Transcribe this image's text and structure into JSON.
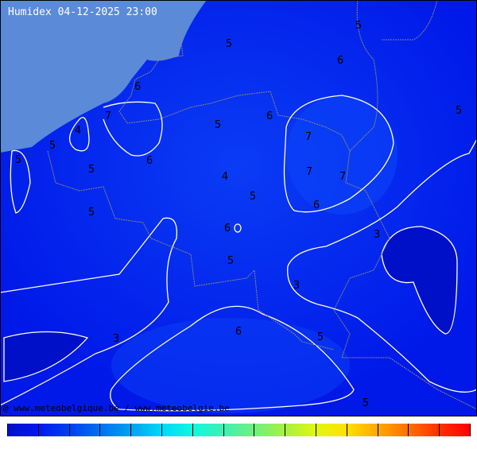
{
  "title": "Humidex 04-12-2025 23:00",
  "credit": "@ www.meteobelgique.be / www.meteobelgie.be",
  "colors": {
    "sea": "#5b8ad8",
    "land_base": "#0022ee",
    "contour": "#ffffff",
    "border": "#888888"
  },
  "contour_labels": [
    {
      "value": "5",
      "id": "a"
    },
    {
      "value": "5",
      "id": "b"
    },
    {
      "value": "6",
      "id": "c"
    },
    {
      "value": "6",
      "id": "d"
    },
    {
      "value": "7",
      "id": "e"
    },
    {
      "value": "4",
      "id": "f"
    },
    {
      "value": "5",
      "id": "g"
    },
    {
      "value": "5",
      "id": "h"
    },
    {
      "value": "6",
      "id": "i"
    },
    {
      "value": "5",
      "id": "j"
    },
    {
      "value": "6",
      "id": "k"
    },
    {
      "value": "7",
      "id": "l"
    },
    {
      "value": "7",
      "id": "m"
    },
    {
      "value": "7",
      "id": "n"
    },
    {
      "value": "4",
      "id": "o"
    },
    {
      "value": "5",
      "id": "p"
    },
    {
      "value": "6",
      "id": "q"
    },
    {
      "value": "5",
      "id": "r"
    },
    {
      "value": "5",
      "id": "s"
    },
    {
      "value": "6",
      "id": "t"
    },
    {
      "value": "5",
      "id": "u"
    },
    {
      "value": "3",
      "id": "v"
    },
    {
      "value": "3",
      "id": "w"
    },
    {
      "value": "6",
      "id": "x"
    },
    {
      "value": "5",
      "id": "y"
    },
    {
      "value": "3",
      "id": "z"
    },
    {
      "value": "5",
      "id": "aa"
    },
    {
      "value": "5",
      "id": "ab"
    }
  ],
  "legend_colors": [
    "#0010c8",
    "#0018f0",
    "#0040f0",
    "#0070f0",
    "#00a0f0",
    "#00d8f8",
    "#10f8e0",
    "#40f0b0",
    "#70f080",
    "#a8f040",
    "#e0f810",
    "#ffe000",
    "#ffa800",
    "#ff7000",
    "#ff3000"
  ]
}
